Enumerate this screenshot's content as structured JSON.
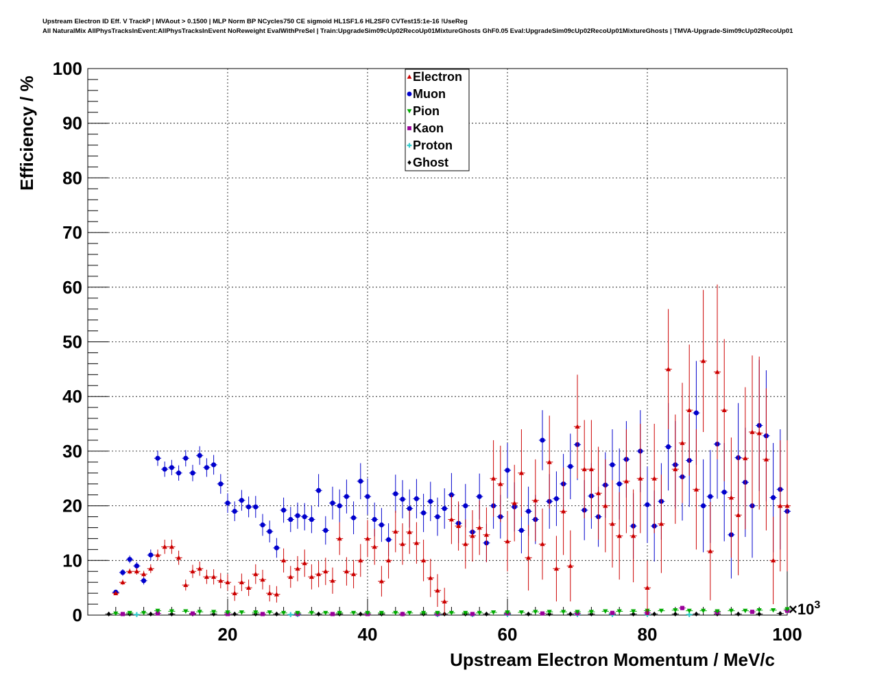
{
  "header": {
    "title_line1": "Upstream Electron ID Eff. V TrackP | MVAout > 0.1500 | MLP Norm BP NCycles750 CE sigmoid HL1SF1.6 HL2SF0 CVTest15:1e-16 !UseReg",
    "title_line2": "All NaturalMix AllPhysTracksInEvent:AllPhysTracksInEvent NoReweight EvalWithPreSel | Train:UpgradeSim09cUp02RecoUp01MixtureGhosts GhF0.05 Eval:UpgradeSim09cUp02RecoUp01MixtureGhosts | TMVA-Upgrade-Sim09cUp02RecoUp01"
  },
  "chart_data": {
    "type": "scatter",
    "xlabel": "Upstream Electron Momentum / MeV/c",
    "ylabel": "Efficiency / %",
    "x_multiplier_label": "×10",
    "x_multiplier_exp": "3",
    "xlim": [
      0,
      100
    ],
    "ylim": [
      0,
      100
    ],
    "x_ticks": [
      20,
      40,
      60,
      80,
      100
    ],
    "y_ticks": [
      0,
      10,
      20,
      30,
      40,
      50,
      60,
      70,
      80,
      90,
      100
    ],
    "grid": true,
    "legend_position": "top-center",
    "series": [
      {
        "name": "Electron",
        "color": "#cc0000",
        "marker": "triangle-up",
        "x": [
          4,
          5,
          6,
          7,
          8,
          9,
          10,
          11,
          12,
          13,
          14,
          15,
          16,
          17,
          18,
          19,
          20,
          21,
          22,
          23,
          24,
          25,
          26,
          27,
          28,
          29,
          30,
          31,
          32,
          33,
          34,
          35,
          36,
          37,
          38,
          39,
          40,
          41,
          42,
          43,
          44,
          45,
          46,
          47,
          48,
          49,
          50,
          51,
          52,
          53,
          54,
          55,
          56,
          57,
          58,
          59,
          60,
          61,
          62,
          63,
          64,
          65,
          66,
          67,
          68,
          69,
          70,
          71,
          72,
          73,
          74,
          75,
          76,
          77,
          78,
          79,
          80,
          81,
          82,
          83,
          84,
          85,
          86,
          87,
          88,
          89,
          90,
          91,
          92,
          93,
          94,
          95,
          96,
          97,
          98,
          99,
          100
        ],
        "y": [
          4,
          6,
          8,
          8,
          7.5,
          8.5,
          11,
          12.5,
          12.5,
          10.5,
          5.5,
          8,
          8.5,
          7,
          7,
          6.3,
          6,
          4,
          6,
          5,
          7.5,
          6.5,
          4,
          3.8,
          10,
          7,
          8.5,
          9.5,
          7,
          7.5,
          8,
          6.3,
          14,
          8,
          7.5,
          10,
          14,
          12.5,
          6.2,
          10,
          15.3,
          13,
          15.2,
          13.2,
          10,
          6.8,
          4.5,
          2.5,
          17.5,
          16.3,
          13,
          14.5,
          16,
          14.7,
          25,
          24,
          13.5,
          20.5,
          26,
          10.5,
          21,
          13,
          28,
          8.5,
          19,
          9,
          34.5,
          26.7,
          26.7,
          22.3,
          20,
          16.7,
          14.5,
          24.5,
          14.5,
          25,
          5,
          25,
          16.7,
          45,
          26.7,
          31.5,
          37.5,
          23,
          46.5,
          11.7,
          44.5,
          37.5,
          21.5,
          18.3,
          28.7,
          33.5,
          33.3,
          28.5,
          10,
          20,
          20
        ],
        "err": [
          0.3,
          0.5,
          0.5,
          0.6,
          0.6,
          0.8,
          1,
          1.3,
          1.3,
          1.3,
          1,
          1.2,
          1.3,
          1.3,
          1.4,
          1.4,
          1.5,
          1.4,
          1.6,
          1.5,
          1.8,
          1.8,
          1.5,
          1.5,
          2.2,
          2,
          2.3,
          2.5,
          2.3,
          2.4,
          2.5,
          2.4,
          3,
          2.6,
          2.6,
          3,
          3.4,
          3.3,
          2.8,
          3.3,
          3.8,
          3.8,
          4,
          3.8,
          3.8,
          3.5,
          3,
          2.5,
          4.5,
          4.5,
          4.5,
          4.7,
          5,
          5,
          7,
          7,
          5.5,
          7,
          8,
          6,
          7.5,
          6.5,
          8.5,
          6,
          8,
          6.5,
          9.5,
          9,
          9,
          8.5,
          8.5,
          8,
          8,
          9.5,
          8.5,
          10,
          5,
          10,
          9,
          11,
          10,
          11,
          12,
          11,
          13,
          9,
          16,
          13,
          11,
          11,
          13,
          14,
          14,
          13,
          8,
          12,
          12
        ]
      },
      {
        "name": "Muon",
        "color": "#0000cc",
        "marker": "circle",
        "x": [
          4,
          5,
          6,
          7,
          8,
          9,
          10,
          11,
          12,
          13,
          14,
          15,
          16,
          17,
          18,
          19,
          20,
          21,
          22,
          23,
          24,
          25,
          26,
          27,
          28,
          29,
          30,
          31,
          32,
          33,
          34,
          35,
          36,
          37,
          38,
          39,
          40,
          41,
          42,
          43,
          44,
          45,
          46,
          47,
          48,
          49,
          50,
          51,
          52,
          53,
          54,
          55,
          56,
          57,
          58,
          59,
          60,
          61,
          62,
          63,
          64,
          65,
          66,
          67,
          68,
          69,
          70,
          71,
          72,
          73,
          74,
          75,
          76,
          77,
          78,
          79,
          80,
          81,
          82,
          83,
          84,
          85,
          86,
          87,
          88,
          89,
          90,
          91,
          92,
          93,
          94,
          95,
          96,
          97,
          98,
          99,
          100
        ],
        "y": [
          4.2,
          7.8,
          10.2,
          9,
          6.3,
          11,
          28.7,
          26.7,
          27,
          26,
          28.7,
          26,
          29.2,
          27,
          27.5,
          24,
          20.5,
          19,
          21,
          19.8,
          19.8,
          16.5,
          15.3,
          12.3,
          19.2,
          17.5,
          18.2,
          18,
          17.5,
          22.8,
          15.5,
          20.5,
          20,
          21.7,
          17.8,
          24.5,
          21.7,
          17.5,
          16.5,
          13.8,
          22.2,
          21.2,
          19.5,
          21.3,
          18.7,
          20.8,
          18,
          19.5,
          22,
          16.8,
          20,
          15.2,
          21.7,
          13.2,
          20,
          18,
          26.5,
          19.8,
          15.5,
          19,
          17.5,
          32,
          20.8,
          21.3,
          24,
          27.2,
          31.2,
          19.2,
          21.8,
          18,
          23.8,
          27.5,
          24,
          28.5,
          16.3,
          30,
          20.2,
          16.3,
          20.8,
          30.8,
          27.5,
          25.3,
          28.3,
          37,
          20,
          21.7,
          31.3,
          22.5,
          14.7,
          28.8,
          24.3,
          20,
          34.7,
          32.8,
          21.5,
          23,
          19
        ],
        "err": [
          0.3,
          0.6,
          0.7,
          0.7,
          0.7,
          1,
          1.4,
          1.4,
          1.4,
          1.4,
          1.5,
          1.5,
          1.7,
          1.7,
          1.8,
          1.8,
          1.8,
          1.8,
          1.9,
          1.9,
          2,
          2,
          2,
          1.8,
          2.3,
          2.3,
          2.4,
          2.5,
          2.5,
          3,
          2.6,
          3,
          3,
          3.1,
          3,
          3.3,
          3.3,
          3.1,
          3.1,
          3,
          3.5,
          3.5,
          3.5,
          3.6,
          3.5,
          3.6,
          3.5,
          3.7,
          4,
          3.6,
          4,
          3.6,
          4.2,
          3.5,
          4.2,
          4,
          5,
          4.5,
          4.2,
          4.5,
          4.5,
          5.5,
          5,
          5,
          5.5,
          6,
          6.5,
          5.5,
          6,
          5.5,
          6,
          6.5,
          6.5,
          7,
          6,
          7.5,
          7,
          6.5,
          7,
          8,
          8,
          8,
          8.5,
          9.5,
          8.5,
          8.5,
          10,
          9,
          8,
          10,
          10,
          9.5,
          12,
          12,
          10,
          11,
          11
        ]
      },
      {
        "name": "Pion",
        "color": "#00aa00",
        "marker": "triangle-down",
        "x": [
          4,
          6,
          8,
          10,
          12,
          14,
          16,
          18,
          20,
          22,
          24,
          26,
          28,
          30,
          32,
          34,
          36,
          38,
          40,
          42,
          44,
          46,
          48,
          50,
          52,
          54,
          56,
          58,
          60,
          62,
          64,
          66,
          68,
          70,
          72,
          74,
          76,
          78,
          80,
          82,
          84,
          86,
          88,
          90,
          92,
          94,
          96,
          98,
          100
        ],
        "y": [
          0.3,
          0.4,
          0.4,
          0.8,
          0.7,
          0.7,
          0.6,
          0.6,
          0.5,
          0.5,
          0.5,
          0.5,
          0.4,
          0.4,
          0.4,
          0.4,
          0.4,
          0.4,
          0.4,
          0.4,
          0.4,
          0.4,
          0.4,
          0.4,
          0.4,
          0.4,
          0.4,
          0.5,
          0.5,
          0.5,
          0.6,
          0.6,
          0.6,
          0.6,
          0.6,
          0.7,
          0.7,
          0.7,
          0.8,
          0.8,
          0.9,
          0.8,
          0.8,
          0.7,
          0.8,
          0.8,
          0.9,
          0.9,
          1.1
        ],
        "err": [
          0.05,
          0.05,
          0.05,
          0.1,
          0.1,
          0.1,
          0.1,
          0.1,
          0.1,
          0.1,
          0.1,
          0.1,
          0.1,
          0.1,
          0.1,
          0.1,
          0.1,
          0.1,
          0.1,
          0.1,
          0.1,
          0.1,
          0.1,
          0.1,
          0.1,
          0.1,
          0.1,
          0.1,
          0.1,
          0.1,
          0.15,
          0.15,
          0.15,
          0.15,
          0.15,
          0.15,
          0.15,
          0.15,
          0.2,
          0.2,
          0.2,
          0.2,
          0.2,
          0.2,
          0.2,
          0.2,
          0.2,
          0.2,
          0.3
        ]
      },
      {
        "name": "Kaon",
        "color": "#990099",
        "marker": "square",
        "x": [
          5,
          10,
          15,
          20,
          25,
          30,
          35,
          40,
          45,
          50,
          55,
          60,
          65,
          70,
          75,
          80,
          85,
          90,
          95,
          100
        ],
        "y": [
          0.2,
          0.3,
          0.3,
          0.2,
          0.2,
          0.2,
          0.2,
          0.2,
          0.2,
          0.2,
          0.2,
          0.3,
          0.3,
          0.3,
          0.4,
          0.4,
          1.3,
          0.5,
          0.6,
          0.8
        ],
        "err": [
          0.1,
          0.1,
          0.1,
          0.1,
          0.1,
          0.1,
          0.1,
          0.1,
          0.1,
          0.1,
          0.1,
          0.1,
          0.1,
          0.2,
          0.2,
          0.2,
          0.4,
          0.2,
          0.3,
          0.3
        ]
      },
      {
        "name": "Proton",
        "color": "#33cccc",
        "marker": "cross",
        "x": [
          7,
          29,
          30,
          50,
          55,
          60,
          70,
          75,
          80,
          86
        ],
        "y": [
          0.1,
          0.1,
          0.1,
          0.1,
          0.1,
          0.1,
          0.1,
          0.1,
          0.1,
          0.1
        ],
        "err": [
          0.05,
          0.05,
          0.05,
          0.05,
          0.05,
          0.05,
          0.05,
          0.05,
          0.05,
          0.05
        ]
      },
      {
        "name": "Ghost",
        "color": "#000000",
        "marker": "diamond",
        "x": [
          3,
          6,
          9,
          12,
          15,
          18,
          21,
          24,
          27,
          30,
          33,
          36,
          39,
          42,
          45,
          48,
          51,
          54,
          57,
          60,
          63,
          66,
          69,
          72,
          75,
          78,
          81,
          84,
          87,
          90,
          93,
          96,
          99
        ],
        "y": [
          0.2,
          0.2,
          0.2,
          0.2,
          0.2,
          0.2,
          0.2,
          0.2,
          0.2,
          0.2,
          0.2,
          0.2,
          0.2,
          0.2,
          0.2,
          0.2,
          0.2,
          0.2,
          0.2,
          0.2,
          0.2,
          0.2,
          0.2,
          0.2,
          0.2,
          0.2,
          0.2,
          0.2,
          0.2,
          0.2,
          0.2,
          0.2,
          0.3
        ],
        "err": [
          0.05,
          0.05,
          0.05,
          0.05,
          0.05,
          0.05,
          0.05,
          0.05,
          0.05,
          0.05,
          0.05,
          0.05,
          0.05,
          0.05,
          0.05,
          0.05,
          0.05,
          0.05,
          0.05,
          0.05,
          0.05,
          0.05,
          0.05,
          0.05,
          0.05,
          0.05,
          0.05,
          0.05,
          0.05,
          0.05,
          0.05,
          0.05,
          0.05
        ]
      }
    ]
  }
}
